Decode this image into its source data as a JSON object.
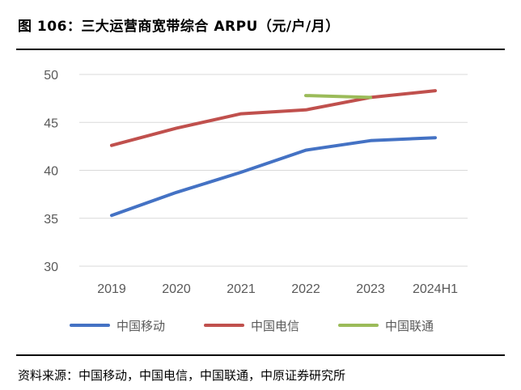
{
  "title": "图 106：三大运营商宽带综合 ARPU（元/户/月）",
  "source": "资料来源：中国移动，中国电信，中国联通，中原证券研究所",
  "chart_data": {
    "type": "line",
    "title": "图 106：三大运营商宽带综合 ARPU（元/户/月）",
    "xlabel": "",
    "ylabel": "",
    "categories": [
      "2019",
      "2020",
      "2021",
      "2022",
      "2023",
      "2024H1"
    ],
    "ylim": [
      30,
      50
    ],
    "yticks": [
      30,
      35,
      40,
      45,
      50
    ],
    "grid": true,
    "legend_position": "bottom",
    "series": [
      {
        "name": "中国移动",
        "color": "#4472C4",
        "values": [
          35.3,
          37.7,
          39.8,
          42.1,
          43.1,
          43.4
        ]
      },
      {
        "name": "中国电信",
        "color": "#C0504D",
        "values": [
          42.6,
          44.4,
          45.9,
          46.3,
          47.6,
          48.3
        ]
      },
      {
        "name": "中国联通",
        "color": "#9BBB59",
        "values": [
          null,
          null,
          null,
          47.8,
          47.6,
          null
        ]
      }
    ]
  }
}
